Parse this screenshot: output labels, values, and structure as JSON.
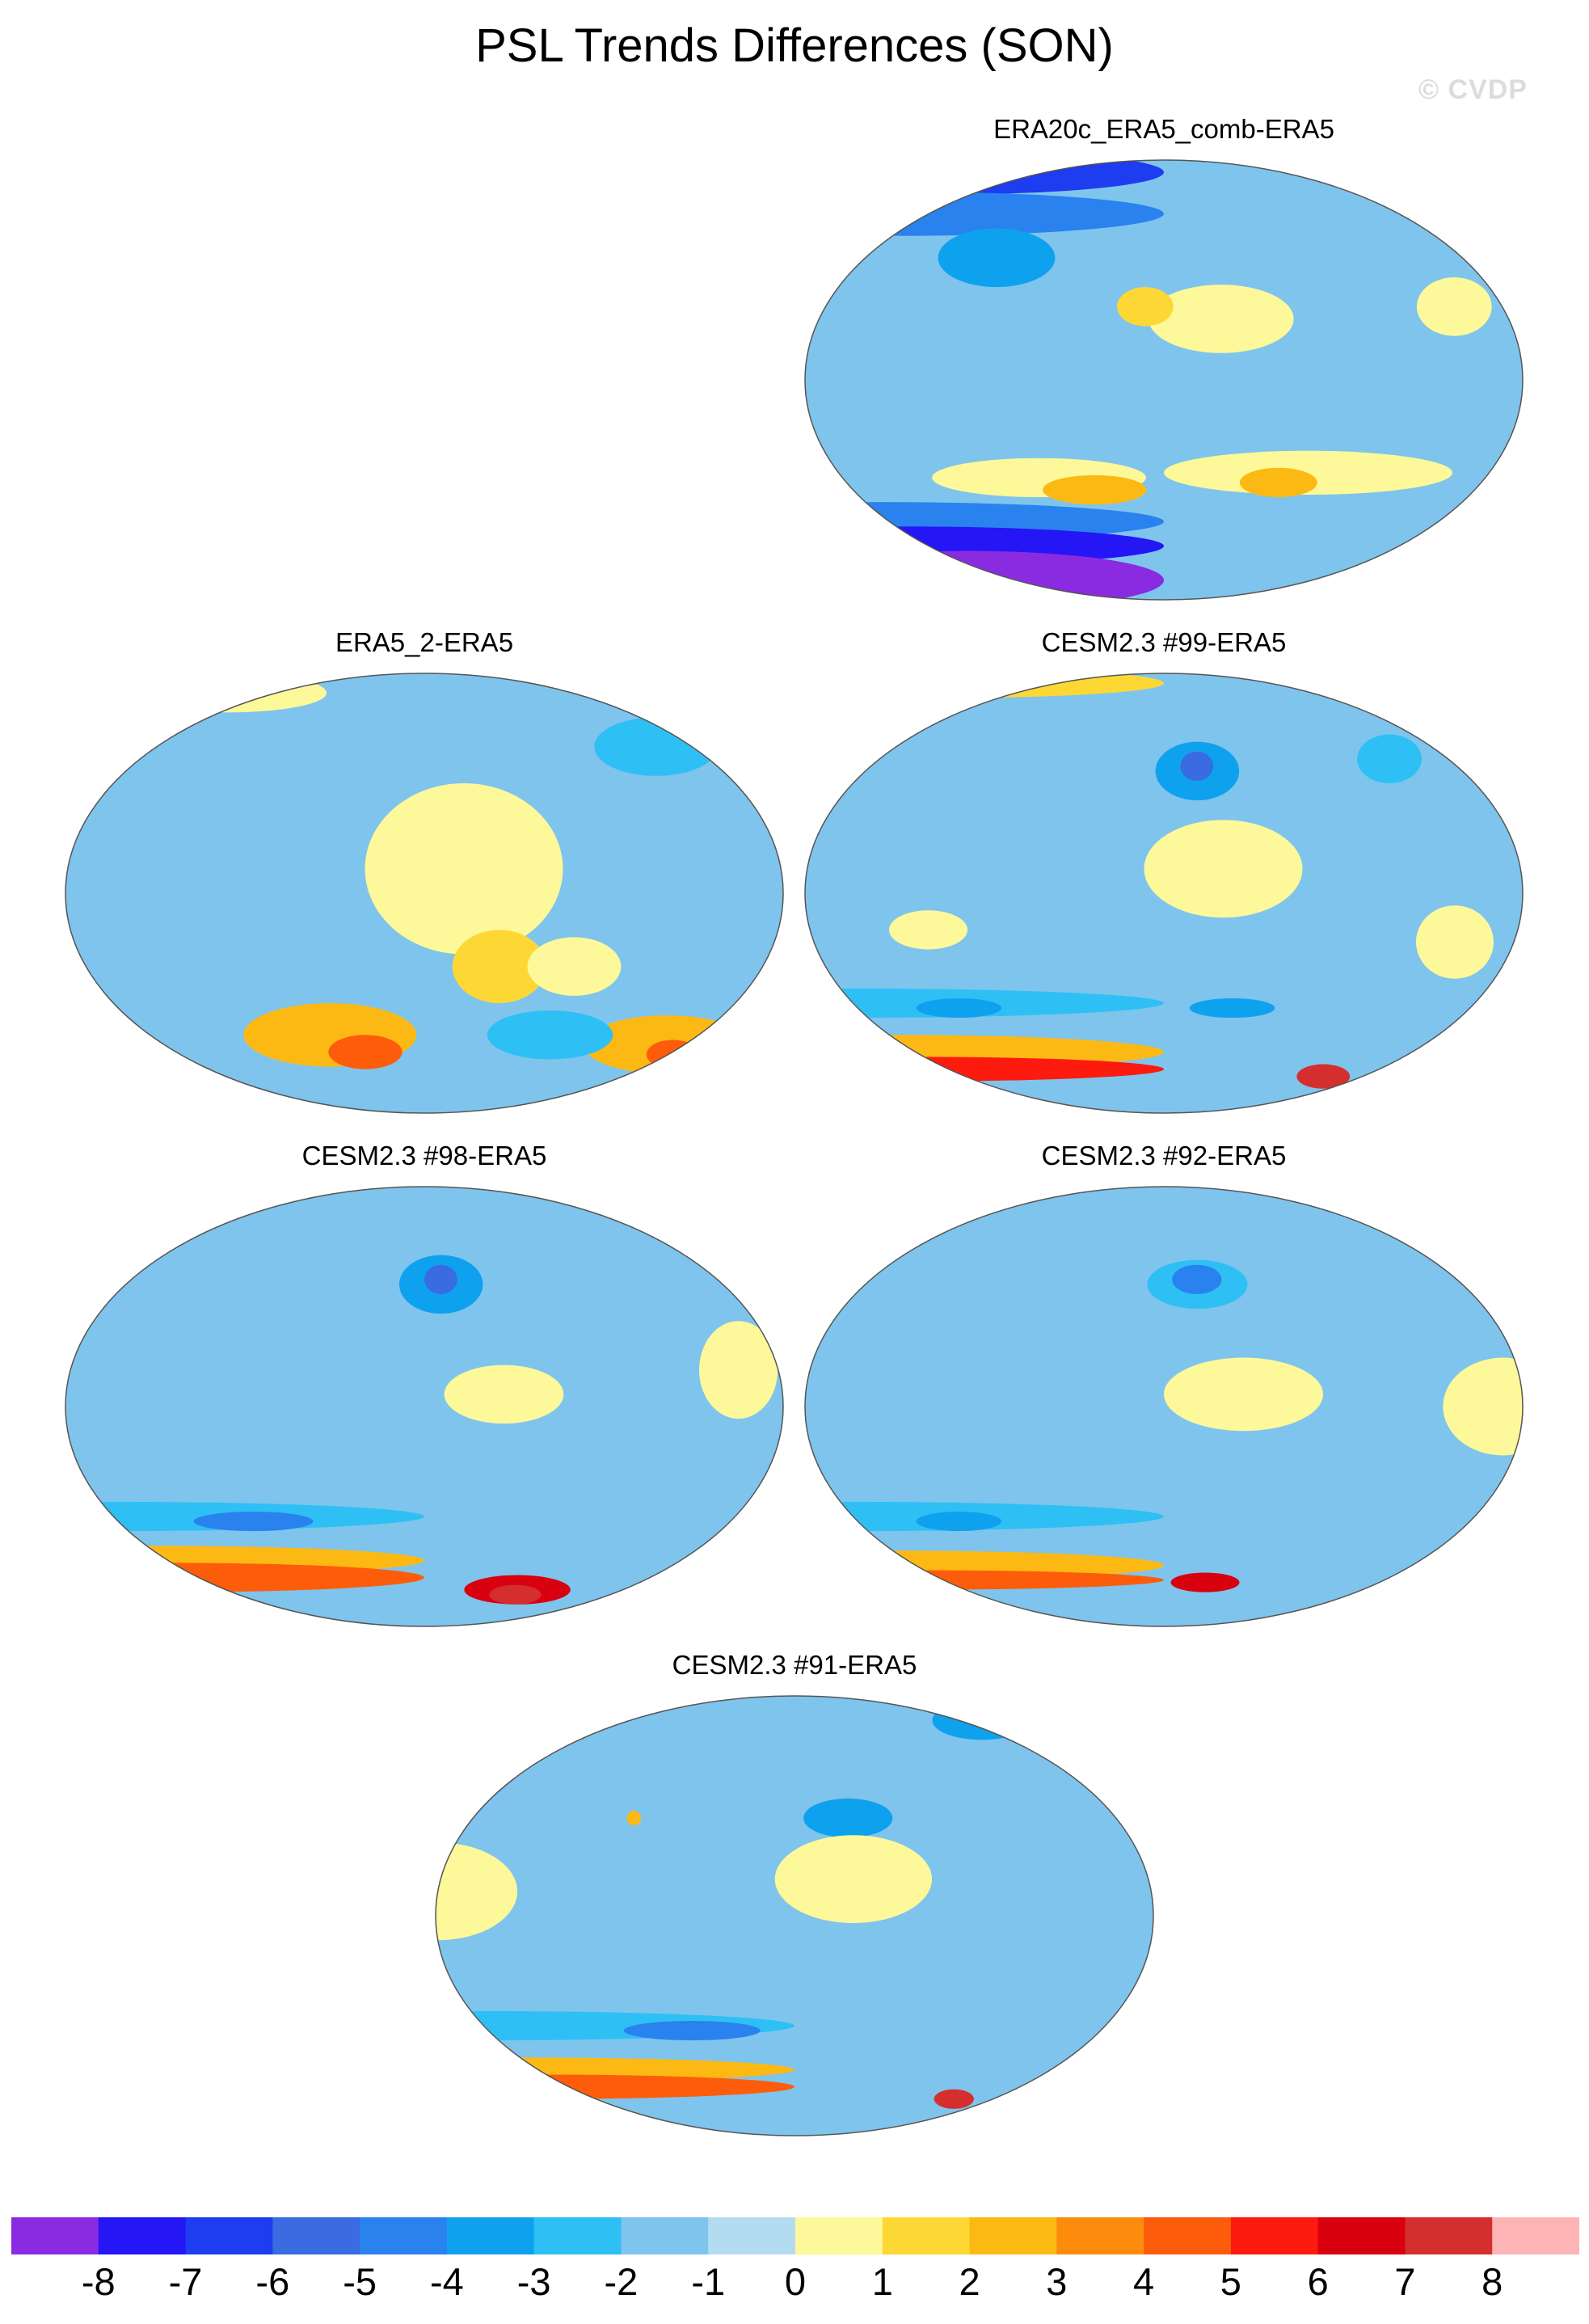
{
  "title": "PSL Trends Differences (SON)",
  "watermark": "© CVDP",
  "panels": [
    {
      "title": "ERA20c_ERA5_comb-ERA5",
      "regions": [
        {
          "lon": 0,
          "lat": 85,
          "rl": 180,
          "ra": 9,
          "level": -6
        },
        {
          "lon": 0,
          "lat": 68,
          "rl": 180,
          "ra": 9,
          "level": -4
        },
        {
          "lon": 80,
          "lat": 50,
          "rl": 35,
          "ra": 12,
          "level": -3
        },
        {
          "lon": -150,
          "lat": 25,
          "rl": 38,
          "ra": 14,
          "level": 1
        },
        {
          "lon": -25,
          "lat": 30,
          "rl": 20,
          "ra": 12,
          "level": 1
        },
        {
          "lon": 170,
          "lat": 30,
          "rl": 15,
          "ra": 8,
          "level": 2
        },
        {
          "lon": -100,
          "lat": -38,
          "rl": 80,
          "ra": 9,
          "level": 1
        },
        {
          "lon": 110,
          "lat": -40,
          "rl": 60,
          "ra": 8,
          "level": 1
        },
        {
          "lon": 140,
          "lat": -45,
          "rl": 30,
          "ra": 6,
          "level": 3
        },
        {
          "lon": -115,
          "lat": -42,
          "rl": 22,
          "ra": 6,
          "level": 3
        },
        {
          "lon": 0,
          "lat": -58,
          "rl": 180,
          "ra": 8,
          "level": -4
        },
        {
          "lon": 0,
          "lat": -68,
          "rl": 180,
          "ra": 8,
          "level": -7
        },
        {
          "lon": 20,
          "lat": -82,
          "rl": 160,
          "ra": 12,
          "level": -8
        }
      ]
    },
    {
      "title": "ERA5_2-ERA5",
      "regions": [
        {
          "lon": -30,
          "lat": 60,
          "rl": 40,
          "ra": 12,
          "level": -2
        },
        {
          "lon": 20,
          "lat": 82,
          "rl": 80,
          "ra": 8,
          "level": 1
        },
        {
          "lon": -160,
          "lat": 10,
          "rl": 50,
          "ra": 35,
          "level": 1
        },
        {
          "lon": -140,
          "lat": -30,
          "rl": 25,
          "ra": 15,
          "level": 2
        },
        {
          "lon": -100,
          "lat": -30,
          "rl": 25,
          "ra": 12,
          "level": 1
        },
        {
          "lon": 120,
          "lat": -58,
          "rl": 55,
          "ra": 13,
          "level": 3
        },
        {
          "lon": 140,
          "lat": -65,
          "rl": 25,
          "ra": 7,
          "level": 5
        },
        {
          "lon": -20,
          "lat": -62,
          "rl": 55,
          "ra": 12,
          "level": 3
        },
        {
          "lon": -10,
          "lat": -66,
          "rl": 18,
          "ra": 6,
          "level": 5
        },
        {
          "lon": -100,
          "lat": -58,
          "rl": 40,
          "ra": 10,
          "level": -2
        }
      ]
    },
    {
      "title": "CESM2.3 #99-ERA5",
      "regions": [
        {
          "lon": 0,
          "lat": 86,
          "rl": 180,
          "ra": 6,
          "level": 2
        },
        {
          "lon": -160,
          "lat": 50,
          "rl": 25,
          "ra": 12,
          "level": -3
        },
        {
          "lon": -160,
          "lat": 52,
          "rl": 10,
          "ra": 6,
          "level": -5
        },
        {
          "lon": -40,
          "lat": 55,
          "rl": 20,
          "ra": 10,
          "level": -2
        },
        {
          "lon": -150,
          "lat": 10,
          "rl": 40,
          "ra": 20,
          "level": 1
        },
        {
          "lon": -30,
          "lat": -20,
          "rl": 20,
          "ra": 15,
          "level": 1
        },
        {
          "lon": 60,
          "lat": -15,
          "rl": 20,
          "ra": 8,
          "level": 1
        },
        {
          "lon": 0,
          "lat": -45,
          "rl": 180,
          "ra": 6,
          "level": -2
        },
        {
          "lon": 60,
          "lat": -47,
          "rl": 25,
          "ra": 4,
          "level": -3
        },
        {
          "lon": -140,
          "lat": -47,
          "rl": 25,
          "ra": 4,
          "level": -3
        },
        {
          "lon": 0,
          "lat": -65,
          "rl": 180,
          "ra": 7,
          "level": 3
        },
        {
          "lon": 0,
          "lat": -72,
          "rl": 180,
          "ra": 5,
          "level": 6
        },
        {
          "lon": -60,
          "lat": -75,
          "rl": 20,
          "ra": 5,
          "level": 8
        }
      ]
    },
    {
      "title": "CESM2.3 #98-ERA5",
      "regions": [
        {
          "lon": -170,
          "lat": 50,
          "rl": 25,
          "ra": 12,
          "level": -3
        },
        {
          "lon": -170,
          "lat": 52,
          "rl": 10,
          "ra": 6,
          "level": -5
        },
        {
          "lon": -140,
          "lat": 5,
          "rl": 30,
          "ra": 12,
          "level": 1
        },
        {
          "lon": -20,
          "lat": 15,
          "rl": 20,
          "ra": 20,
          "level": 1
        },
        {
          "lon": 0,
          "lat": -45,
          "rl": 180,
          "ra": 6,
          "level": -2
        },
        {
          "lon": 80,
          "lat": -47,
          "rl": 35,
          "ra": 4,
          "level": -4
        },
        {
          "lon": 0,
          "lat": -63,
          "rl": 180,
          "ra": 6,
          "level": 3
        },
        {
          "lon": 0,
          "lat": -70,
          "rl": 180,
          "ra": 6,
          "level": 5
        },
        {
          "lon": -110,
          "lat": -75,
          "rl": 40,
          "ra": 6,
          "level": 7
        },
        {
          "lon": -110,
          "lat": -77,
          "rl": 20,
          "ra": 4,
          "level": 8
        }
      ]
    },
    {
      "title": "CESM2.3 #92-ERA5",
      "regions": [
        {
          "lon": -160,
          "lat": 50,
          "rl": 30,
          "ra": 10,
          "level": -2
        },
        {
          "lon": -160,
          "lat": 52,
          "rl": 15,
          "ra": 6,
          "level": -4
        },
        {
          "lon": -140,
          "lat": 5,
          "rl": 40,
          "ra": 15,
          "level": 1
        },
        {
          "lon": -10,
          "lat": 0,
          "rl": 30,
          "ra": 20,
          "level": 1
        },
        {
          "lon": 0,
          "lat": -45,
          "rl": 180,
          "ra": 6,
          "level": -2
        },
        {
          "lon": 60,
          "lat": -47,
          "rl": 25,
          "ra": 4,
          "level": -3
        },
        {
          "lon": 0,
          "lat": -65,
          "rl": 180,
          "ra": 6,
          "level": 3
        },
        {
          "lon": 0,
          "lat": -71,
          "rl": 180,
          "ra": 4,
          "level": 5
        },
        {
          "lon": -150,
          "lat": -72,
          "rl": 25,
          "ra": 4,
          "level": 7
        }
      ]
    },
    {
      "title": "CESM2.3 #91-ERA5",
      "regions": [
        {
          "lon": -30,
          "lat": 80,
          "rl": 40,
          "ra": 8,
          "level": -3
        },
        {
          "lon": -150,
          "lat": 40,
          "rl": 25,
          "ra": 8,
          "level": -3
        },
        {
          "lon": 90,
          "lat": 40,
          "rl": 4,
          "ra": 3,
          "level": 3
        },
        {
          "lon": -150,
          "lat": 15,
          "rl": 40,
          "ra": 18,
          "level": 1
        },
        {
          "lon": 0,
          "lat": 10,
          "rl": 40,
          "ra": 20,
          "level": 1
        },
        {
          "lon": 0,
          "lat": -45,
          "rl": 180,
          "ra": 6,
          "level": -2
        },
        {
          "lon": 120,
          "lat": -47,
          "rl": 40,
          "ra": 4,
          "level": -4
        },
        {
          "lon": 0,
          "lat": -63,
          "rl": 180,
          "ra": 5,
          "level": 3
        },
        {
          "lon": 0,
          "lat": -70,
          "rl": 180,
          "ra": 5,
          "level": 5
        },
        {
          "lon": -60,
          "lat": -75,
          "rl": 15,
          "ra": 4,
          "level": 8
        }
      ]
    }
  ],
  "colorbar": {
    "colors": [
      "#8a2be2",
      "#2516f5",
      "#1e3cf0",
      "#3a6be0",
      "#2a82ee",
      "#0ea2ee",
      "#2ec0f5",
      "#7fc4ec",
      "#b4dcf1",
      "#fdf89a",
      "#fdd835",
      "#fdb913",
      "#fd8c0c",
      "#fd5d0a",
      "#fd1a0e",
      "#d9000f",
      "#d42e2e",
      "#fdb4b4"
    ],
    "labels": [
      "-8",
      "-7",
      "-6",
      "-5",
      "-4",
      "-3",
      "-2",
      "-1",
      "0",
      "1",
      "2",
      "3",
      "4",
      "5",
      "6",
      "7",
      "8"
    ]
  }
}
